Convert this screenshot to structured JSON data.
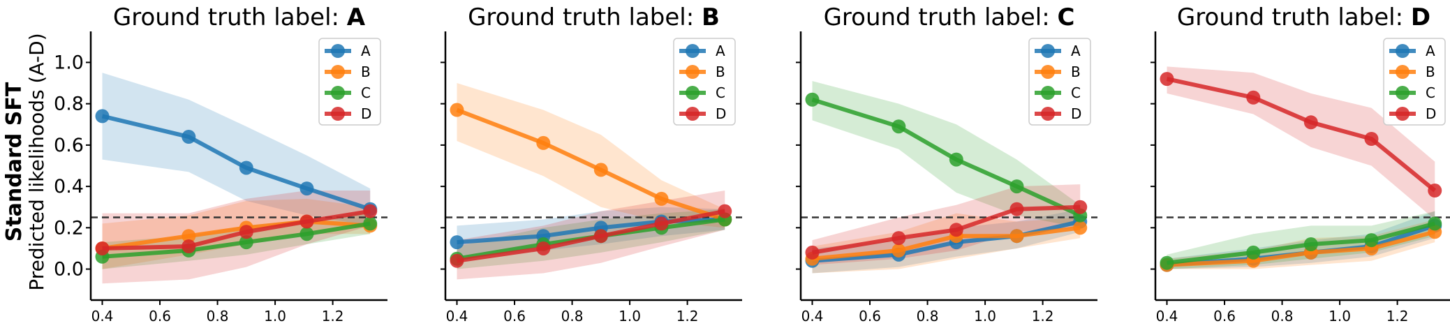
{
  "figure": {
    "row_label": "Standard SFT",
    "ylabel": "Predicted likelihoods (A-D)"
  },
  "colors": {
    "A": "#1f77b4",
    "B": "#ff7f0e",
    "C": "#2ca02c",
    "D": "#d62728",
    "reference_line": "#333333"
  },
  "chart_data": [
    {
      "type": "line",
      "title_prefix": "Ground truth label: ",
      "title_bold": "A",
      "x": [
        0.4,
        0.7,
        0.9,
        1.11,
        1.33
      ],
      "xticks": [
        "0.4",
        "0.6",
        "0.8",
        "1.0",
        "1.2"
      ],
      "yticks": [
        "0.0",
        "0.2",
        "0.4",
        "0.6",
        "0.8",
        "1.0"
      ],
      "xlim": [
        0.36,
        1.39
      ],
      "ylim": [
        -0.15,
        1.15
      ],
      "reference_y": 0.25,
      "legend": [
        "A",
        "B",
        "C",
        "D"
      ],
      "legend_position": "top-right",
      "series": [
        {
          "name": "A",
          "values": [
            0.74,
            0.64,
            0.49,
            0.39,
            0.29
          ],
          "lower": [
            0.53,
            0.47,
            0.33,
            0.26,
            0.21
          ],
          "upper": [
            0.95,
            0.82,
            0.69,
            0.55,
            0.39
          ]
        },
        {
          "name": "B",
          "values": [
            0.1,
            0.16,
            0.2,
            0.23,
            0.21
          ],
          "lower": [
            0.0,
            0.07,
            0.12,
            0.17,
            0.17
          ],
          "upper": [
            0.22,
            0.26,
            0.33,
            0.34,
            0.3
          ]
        },
        {
          "name": "C",
          "values": [
            0.06,
            0.09,
            0.13,
            0.17,
            0.22
          ],
          "lower": [
            0.0,
            0.04,
            0.07,
            0.12,
            0.17
          ],
          "upper": [
            0.13,
            0.16,
            0.21,
            0.24,
            0.28
          ]
        },
        {
          "name": "D",
          "values": [
            0.1,
            0.11,
            0.18,
            0.23,
            0.28
          ],
          "lower": [
            -0.07,
            -0.05,
            0.01,
            0.12,
            0.21
          ],
          "upper": [
            0.27,
            0.27,
            0.34,
            0.38,
            0.38
          ]
        }
      ]
    },
    {
      "type": "line",
      "title_prefix": "Ground truth label: ",
      "title_bold": "B",
      "x": [
        0.4,
        0.7,
        0.9,
        1.11,
        1.33
      ],
      "xticks": [
        "0.4",
        "0.6",
        "0.8",
        "1.0",
        "1.2"
      ],
      "yticks": [
        "",
        "",
        "",
        "",
        "",
        ""
      ],
      "xlim": [
        0.36,
        1.39
      ],
      "ylim": [
        -0.15,
        1.15
      ],
      "reference_y": 0.25,
      "legend": [
        "A",
        "B",
        "C",
        "D"
      ],
      "legend_position": "top-right",
      "series": [
        {
          "name": "A",
          "values": [
            0.13,
            0.16,
            0.2,
            0.23,
            0.24
          ],
          "lower": [
            0.05,
            0.09,
            0.12,
            0.16,
            0.19
          ],
          "upper": [
            0.21,
            0.24,
            0.28,
            0.3,
            0.29
          ]
        },
        {
          "name": "B",
          "values": [
            0.77,
            0.61,
            0.48,
            0.34,
            0.24
          ],
          "lower": [
            0.62,
            0.45,
            0.3,
            0.23,
            0.2
          ],
          "upper": [
            0.9,
            0.77,
            0.65,
            0.43,
            0.29
          ]
        },
        {
          "name": "C",
          "values": [
            0.05,
            0.12,
            0.16,
            0.2,
            0.24
          ],
          "lower": [
            0.0,
            0.04,
            0.08,
            0.13,
            0.19
          ],
          "upper": [
            0.11,
            0.2,
            0.24,
            0.27,
            0.29
          ]
        },
        {
          "name": "D",
          "values": [
            0.04,
            0.1,
            0.16,
            0.22,
            0.28
          ],
          "lower": [
            -0.05,
            -0.02,
            0.03,
            0.11,
            0.19
          ],
          "upper": [
            0.14,
            0.21,
            0.28,
            0.33,
            0.38
          ]
        }
      ]
    },
    {
      "type": "line",
      "title_prefix": "Ground truth label: ",
      "title_bold": "C",
      "x": [
        0.4,
        0.7,
        0.9,
        1.11,
        1.33
      ],
      "xticks": [
        "0.4",
        "0.6",
        "0.8",
        "1.0",
        "1.2"
      ],
      "yticks": [
        "",
        "",
        "",
        "",
        "",
        ""
      ],
      "xlim": [
        0.36,
        1.39
      ],
      "ylim": [
        -0.15,
        1.15
      ],
      "reference_y": 0.25,
      "legend": [
        "A",
        "B",
        "C",
        "D"
      ],
      "legend_position": "top-right",
      "series": [
        {
          "name": "A",
          "values": [
            0.04,
            0.07,
            0.13,
            0.16,
            0.23
          ],
          "lower": [
            -0.02,
            0.01,
            0.06,
            0.1,
            0.18
          ],
          "upper": [
            0.1,
            0.14,
            0.2,
            0.23,
            0.29
          ]
        },
        {
          "name": "B",
          "values": [
            0.05,
            0.09,
            0.16,
            0.16,
            0.2
          ],
          "lower": [
            -0.02,
            0.0,
            0.05,
            0.1,
            0.15
          ],
          "upper": [
            0.11,
            0.18,
            0.27,
            0.23,
            0.25
          ]
        },
        {
          "name": "C",
          "values": [
            0.82,
            0.69,
            0.53,
            0.4,
            0.26
          ],
          "lower": [
            0.72,
            0.58,
            0.37,
            0.26,
            0.2
          ],
          "upper": [
            0.91,
            0.8,
            0.7,
            0.53,
            0.31
          ]
        },
        {
          "name": "D",
          "values": [
            0.08,
            0.15,
            0.19,
            0.29,
            0.3
          ],
          "lower": [
            0.02,
            0.05,
            0.09,
            0.18,
            0.2
          ],
          "upper": [
            0.14,
            0.25,
            0.31,
            0.4,
            0.41
          ]
        }
      ]
    },
    {
      "type": "line",
      "title_prefix": "Ground truth label: ",
      "title_bold": "D",
      "x": [
        0.4,
        0.7,
        0.9,
        1.11,
        1.33
      ],
      "xticks": [
        "0.4",
        "0.6",
        "0.8",
        "1.0",
        "1.2"
      ],
      "yticks": [
        "",
        "",
        "",
        "",
        "",
        ""
      ],
      "xlim": [
        0.36,
        1.39
      ],
      "ylim": [
        -0.15,
        1.15
      ],
      "reference_y": 0.25,
      "legend": [
        "A",
        "B",
        "C",
        "D"
      ],
      "legend_position": "top-right",
      "series": [
        {
          "name": "A",
          "values": [
            0.02,
            0.05,
            0.08,
            0.11,
            0.21
          ],
          "lower": [
            0.0,
            0.01,
            0.03,
            0.06,
            0.15
          ],
          "upper": [
            0.05,
            0.1,
            0.14,
            0.17,
            0.28
          ]
        },
        {
          "name": "B",
          "values": [
            0.02,
            0.04,
            0.08,
            0.1,
            0.18
          ],
          "lower": [
            0.0,
            0.0,
            0.02,
            0.04,
            0.13
          ],
          "upper": [
            0.05,
            0.09,
            0.15,
            0.16,
            0.24
          ]
        },
        {
          "name": "C",
          "values": [
            0.03,
            0.08,
            0.12,
            0.14,
            0.22
          ],
          "lower": [
            0.0,
            0.02,
            0.05,
            0.08,
            0.16
          ],
          "upper": [
            0.07,
            0.17,
            0.21,
            0.21,
            0.28
          ]
        },
        {
          "name": "D",
          "values": [
            0.92,
            0.83,
            0.71,
            0.63,
            0.38
          ],
          "lower": [
            0.85,
            0.75,
            0.59,
            0.5,
            0.24
          ],
          "upper": [
            0.98,
            0.95,
            0.85,
            0.78,
            0.52
          ]
        }
      ]
    }
  ]
}
